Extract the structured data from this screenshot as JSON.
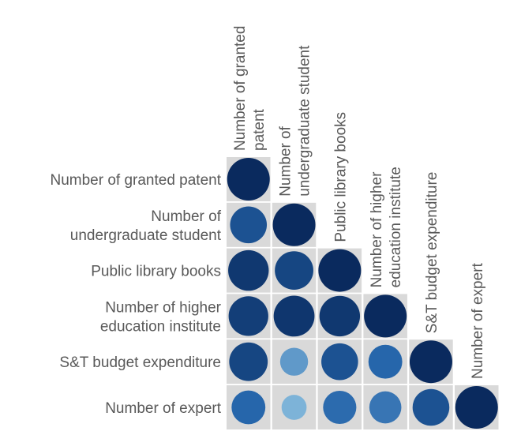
{
  "chart_data": {
    "type": "heatmap",
    "subtype": "correlation-matrix-lower-triangle",
    "variables": [
      "Number of granted patent",
      "Number of undergraduate student",
      "Public library books",
      "Number of higher education institute",
      "S&T budget expenditure",
      "Number of expert"
    ],
    "row_labels": [
      [
        "Number of granted patent"
      ],
      [
        "Number of",
        "undergraduate student"
      ],
      [
        "Public library books"
      ],
      [
        "Number of higher",
        "education institute"
      ],
      [
        "S&T budget expenditure"
      ],
      [
        "Number of expert"
      ]
    ],
    "col_labels": [
      [
        "Number of granted",
        "patent"
      ],
      [
        "Number of",
        "undergraduate student"
      ],
      [
        "Public library books"
      ],
      [
        "Number of higher",
        "education institute"
      ],
      [
        "S&T budget expenditure"
      ],
      [
        "Number of expert"
      ]
    ],
    "values": [
      [
        1.0
      ],
      [
        0.8,
        1.0
      ],
      [
        0.93,
        0.86,
        1.0
      ],
      [
        0.9,
        0.94,
        0.93,
        1.0
      ],
      [
        0.86,
        0.5,
        0.8,
        0.7,
        1.0
      ],
      [
        0.7,
        0.4,
        0.68,
        0.64,
        0.8,
        1.0
      ]
    ],
    "encoding": "circle size and blue color intensity scale with correlation",
    "value_range": [
      0,
      1
    ],
    "grid": true,
    "legend": "none"
  }
}
